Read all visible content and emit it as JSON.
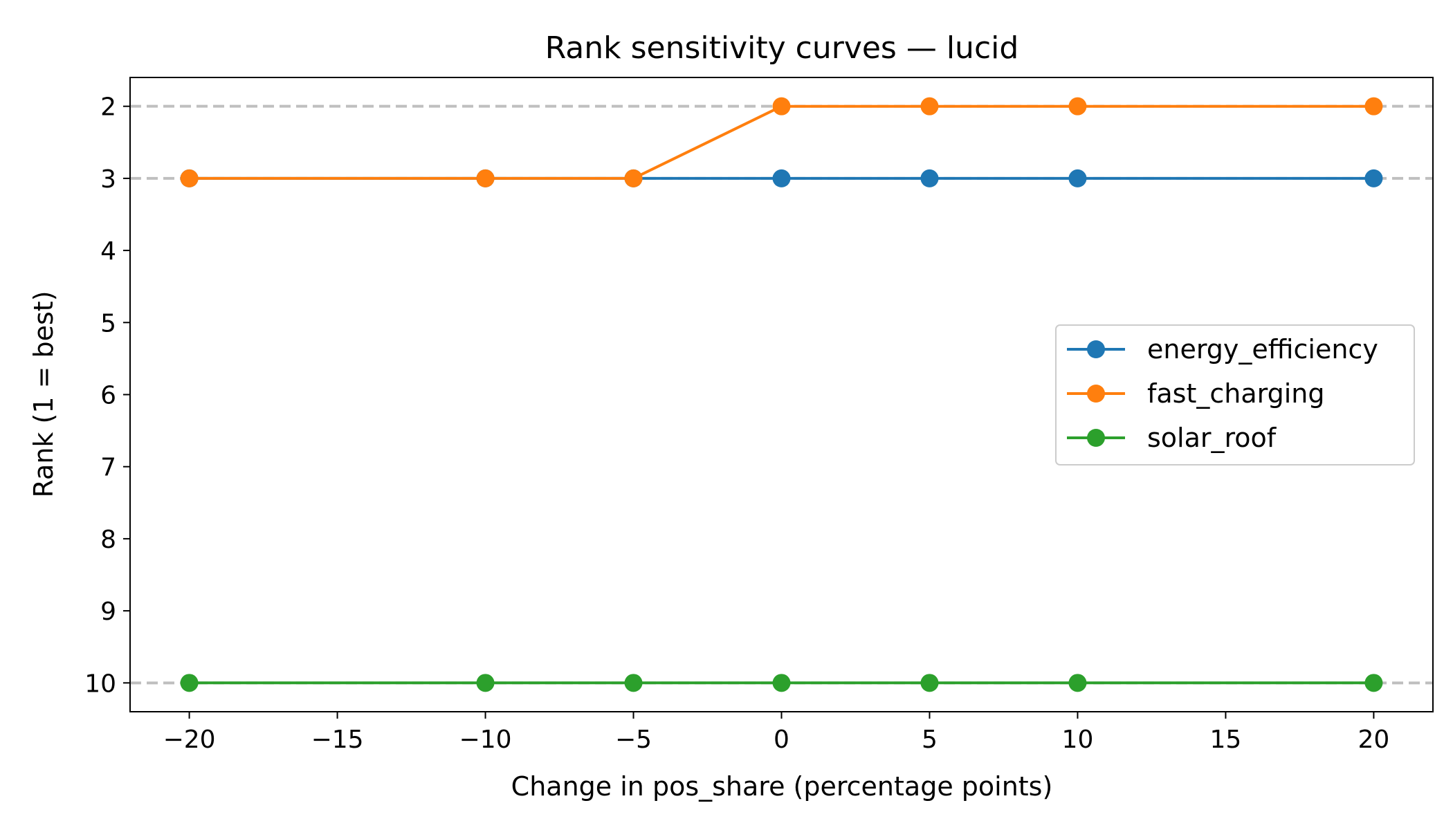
{
  "chart_data": {
    "type": "line",
    "title": "Rank sensitivity curves — lucid",
    "xlabel": "Change in pos_share (percentage points)",
    "ylabel": "Rank (1 = best)",
    "xlim": [
      -22,
      22
    ],
    "ylim": [
      10.4,
      1.6
    ],
    "y_inverted": true,
    "xticks": [
      -20,
      -15,
      -10,
      -5,
      0,
      5,
      10,
      15,
      20
    ],
    "xtick_labels": [
      "−20",
      "−15",
      "−10",
      "−5",
      "0",
      "5",
      "10",
      "15",
      "20"
    ],
    "yticks": [
      2,
      3,
      4,
      5,
      6,
      7,
      8,
      9,
      10
    ],
    "ytick_labels": [
      "2",
      "3",
      "4",
      "5",
      "6",
      "7",
      "8",
      "9",
      "10"
    ],
    "reference_lines": [
      2,
      3,
      10
    ],
    "reference_line_color": "#bfbfbf",
    "grid": false,
    "legend_position": "center-right",
    "x": [
      -20,
      -10,
      -5,
      0,
      5,
      10,
      20
    ],
    "series": [
      {
        "name": "energy_efficiency",
        "color": "#1f77b4",
        "values": [
          3,
          3,
          3,
          3,
          3,
          3,
          3
        ]
      },
      {
        "name": "fast_charging",
        "color": "#ff7f0e",
        "values": [
          3,
          3,
          3,
          2,
          2,
          2,
          2
        ]
      },
      {
        "name": "solar_roof",
        "color": "#2ca02c",
        "values": [
          10,
          10,
          10,
          10,
          10,
          10,
          10
        ]
      }
    ]
  }
}
